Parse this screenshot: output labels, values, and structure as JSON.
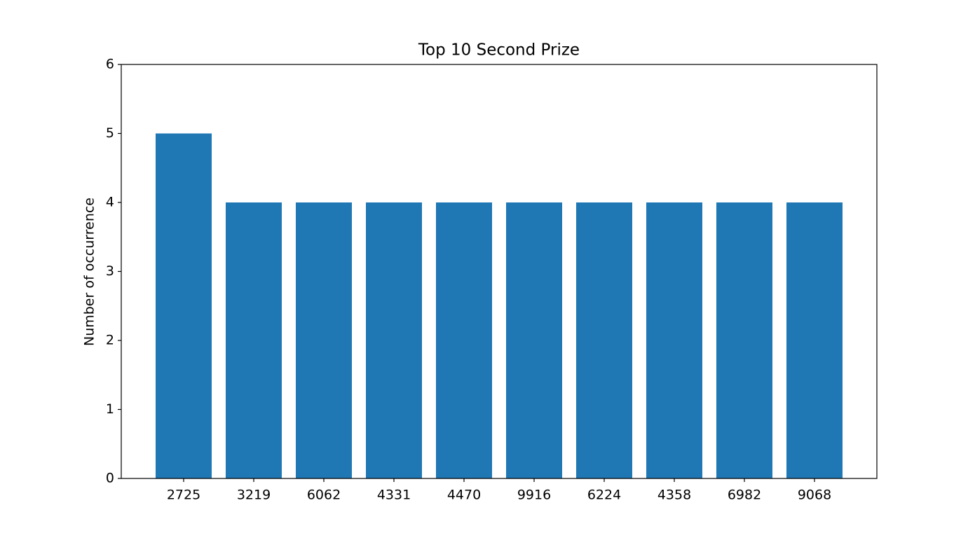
{
  "chart_data": {
    "type": "bar",
    "title": "Top 10 Second Prize",
    "ylabel": "Number of occurrence",
    "categories": [
      "2725",
      "3219",
      "6062",
      "4331",
      "4470",
      "9916",
      "6224",
      "4358",
      "6982",
      "9068"
    ],
    "values": [
      5,
      4,
      4,
      4,
      4,
      4,
      4,
      4,
      4,
      4
    ],
    "color": "#1f77b4",
    "ylim": [
      0,
      6
    ],
    "yticks": [
      0,
      1,
      2,
      3,
      4,
      5,
      6
    ],
    "grid": false
  }
}
